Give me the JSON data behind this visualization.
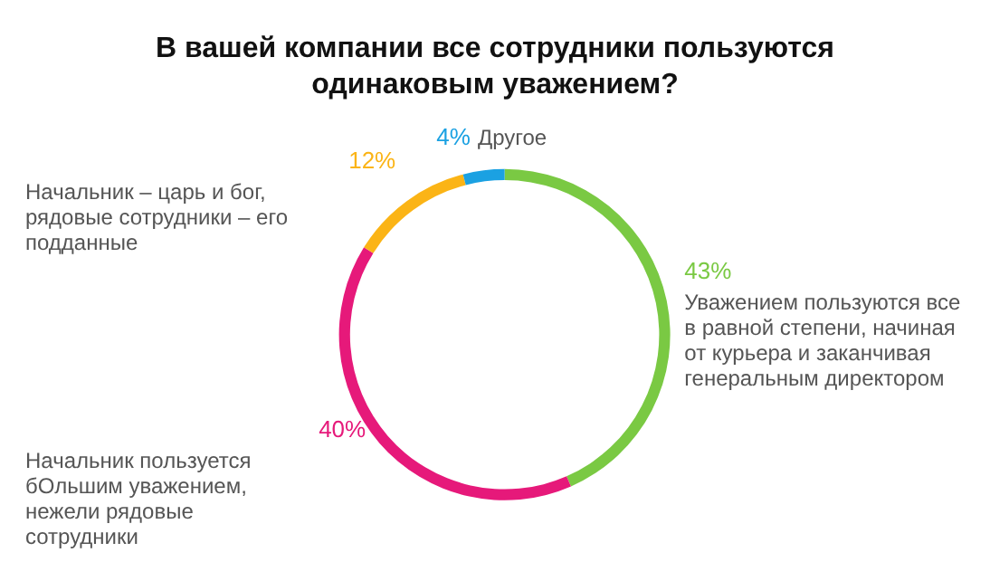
{
  "chart_data": {
    "type": "donut",
    "title": "В вашей компании все сотрудники пользуются одинаковым уважением?",
    "categories": [
      "Уважением пользуются все в равной степени, начиная от курьера и заканчивая генеральным директором",
      "Начальник пользуется бОльшим уважением, нежели рядовые сотрудники",
      "Начальник – царь и бог, рядовые сотрудники – его подданные",
      "Другое"
    ],
    "values": [
      43,
      40,
      12,
      4
    ],
    "value_labels": [
      "43%",
      "40%",
      "12%",
      "4%"
    ],
    "colors": [
      "#7ac943",
      "#e6197a",
      "#fbb416",
      "#1ba1e2"
    ],
    "legend": false
  }
}
